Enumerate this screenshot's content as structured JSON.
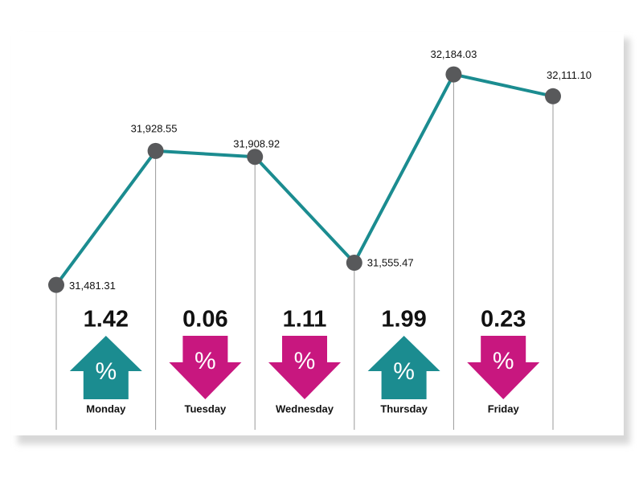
{
  "chart_data": {
    "type": "line",
    "values": [
      31481.31,
      31928.55,
      31908.92,
      31555.47,
      32184.03,
      32111.1
    ],
    "value_labels": [
      "31,481.31",
      "31,928.55",
      "31,908.92",
      "31,555.47",
      "32,184.03",
      "32,111.10"
    ],
    "color": "#1b8c90",
    "marker_color": "#58595b",
    "ylim": [
      31400,
      32250
    ],
    "changes": {
      "categories": [
        "Monday",
        "Tuesday",
        "Wednesday",
        "Thursday",
        "Friday"
      ],
      "values": [
        1.42,
        0.06,
        1.11,
        1.99,
        0.23
      ],
      "value_labels": [
        "1.42",
        "0.06",
        "1.11",
        "1.99",
        "0.23"
      ],
      "directions": [
        "up",
        "down",
        "down",
        "up",
        "down"
      ],
      "symbol": "%",
      "up_color": "#1b8c90",
      "down_color": "#c8177f"
    }
  }
}
